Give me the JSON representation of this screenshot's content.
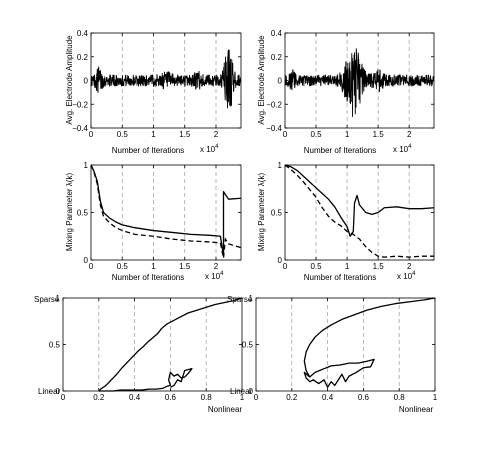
{
  "chart_data": [
    {
      "id": "amp-left",
      "type": "line",
      "ylabel": "Avg. Electrode Amplitude",
      "xlabel": "Number of Iterations",
      "xexp": "x 10^4",
      "xlim": [
        0,
        2.4
      ],
      "ylim": [
        -0.4,
        0.4
      ],
      "xticks": [
        0,
        0.5,
        1,
        1.5,
        2
      ],
      "yticks": [
        -0.4,
        -0.2,
        0,
        0.2,
        0.4
      ],
      "ytick_labels": [
        "−0.4",
        "−0.2",
        "0",
        "0.2",
        "0.4"
      ],
      "grid_x": [
        0.5,
        1,
        1.5,
        2
      ],
      "noise": {
        "base": 0.05,
        "bursts": [
          {
            "center": 0.13,
            "width": 0.05,
            "amp": 0.08
          },
          {
            "center": 1.2,
            "width": 0.1,
            "amp": 0.03
          },
          {
            "center": 1.7,
            "width": 0.07,
            "amp": 0.04
          },
          {
            "center": 2.2,
            "width": 0.07,
            "amp": 0.28
          }
        ]
      },
      "series": [
        {
          "style": "noise"
        }
      ]
    },
    {
      "id": "amp-right",
      "type": "line",
      "ylabel": "Avg. Electrode Amplitude",
      "xlabel": "Number of Iterations",
      "xexp": "x 10^4",
      "xlim": [
        0,
        2.4
      ],
      "ylim": [
        -0.4,
        0.4
      ],
      "xticks": [
        0,
        0.5,
        1,
        1.5,
        2
      ],
      "yticks": [
        -0.4,
        -0.2,
        0,
        0.2,
        0.4
      ],
      "ytick_labels": [
        "−0.4",
        "−0.2",
        "0",
        "0.2",
        "0.4"
      ],
      "grid_x": [
        0.5,
        1,
        1.5,
        2
      ],
      "noise": {
        "base": 0.05,
        "bursts": [
          {
            "center": 0.12,
            "width": 0.05,
            "amp": 0.05
          },
          {
            "center": 1.1,
            "width": 0.14,
            "amp": 0.26
          },
          {
            "center": 1.5,
            "width": 0.08,
            "amp": 0.05
          }
        ]
      },
      "series": [
        {
          "style": "noise"
        }
      ]
    },
    {
      "id": "mix-left",
      "type": "line",
      "ylabel": "Mixing Parameter λ(k)",
      "xlabel": "Number of Iterations",
      "xexp": "x 10^4",
      "xlim": [
        0,
        2.4
      ],
      "ylim": [
        0,
        1
      ],
      "xticks": [
        0,
        0.5,
        1,
        1.5,
        2
      ],
      "yticks": [
        0,
        0.5,
        1
      ],
      "ytick_labels": [
        "0",
        "0.5",
        "1"
      ],
      "grid_x": [
        0.5,
        1,
        1.5,
        2
      ],
      "series": [
        {
          "style": "solid",
          "x": [
            0,
            0.05,
            0.1,
            0.15,
            0.2,
            0.3,
            0.4,
            0.5,
            0.7,
            1.0,
            1.3,
            1.6,
            1.9,
            2.07,
            2.12,
            2.12,
            2.2,
            2.4
          ],
          "y": [
            1,
            0.93,
            0.83,
            0.62,
            0.5,
            0.44,
            0.4,
            0.37,
            0.34,
            0.31,
            0.29,
            0.27,
            0.26,
            0.25,
            0.05,
            0.72,
            0.64,
            0.65
          ]
        },
        {
          "style": "dashed",
          "x": [
            0,
            0.05,
            0.1,
            0.15,
            0.2,
            0.3,
            0.4,
            0.5,
            0.7,
            1.0,
            1.3,
            1.6,
            1.9,
            2.07,
            2.12,
            2.15,
            2.2,
            2.4
          ],
          "y": [
            1,
            0.92,
            0.8,
            0.58,
            0.46,
            0.39,
            0.34,
            0.31,
            0.27,
            0.25,
            0.22,
            0.2,
            0.19,
            0.18,
            0.02,
            0.22,
            0.17,
            0.13
          ]
        }
      ]
    },
    {
      "id": "mix-right",
      "type": "line",
      "ylabel": "Mixing Parameter λ(k)",
      "xlabel": "Number of Iterations",
      "xexp": "x 10^4",
      "xlim": [
        0,
        2.4
      ],
      "ylim": [
        0,
        1
      ],
      "xticks": [
        0,
        0.5,
        1,
        1.5,
        2
      ],
      "yticks": [
        0,
        0.5,
        1
      ],
      "ytick_labels": [
        "0",
        "0.5",
        "1"
      ],
      "grid_x": [
        0.5,
        1,
        1.5,
        2
      ],
      "series": [
        {
          "style": "solid",
          "x": [
            0,
            0.1,
            0.2,
            0.3,
            0.4,
            0.5,
            0.6,
            0.7,
            0.8,
            0.9,
            1.0,
            1.05,
            1.1,
            1.12,
            1.16,
            1.2,
            1.3,
            1.4,
            1.5,
            1.6,
            1.8,
            2.0,
            2.2,
            2.4
          ],
          "y": [
            1,
            0.98,
            0.94,
            0.88,
            0.82,
            0.76,
            0.7,
            0.64,
            0.56,
            0.45,
            0.35,
            0.25,
            0.3,
            0.6,
            0.68,
            0.58,
            0.5,
            0.48,
            0.5,
            0.55,
            0.56,
            0.54,
            0.54,
            0.55
          ]
        },
        {
          "style": "dashed",
          "x": [
            0,
            0.1,
            0.2,
            0.3,
            0.4,
            0.5,
            0.6,
            0.7,
            0.8,
            0.9,
            1.0,
            1.1,
            1.2,
            1.3,
            1.4,
            1.5,
            1.6,
            1.8,
            2.0,
            2.2,
            2.4
          ],
          "y": [
            1,
            0.95,
            0.89,
            0.82,
            0.74,
            0.66,
            0.55,
            0.46,
            0.4,
            0.36,
            0.3,
            0.27,
            0.22,
            0.14,
            0.08,
            0.04,
            0.03,
            0.04,
            0.03,
            0.04,
            0.04
          ]
        }
      ]
    },
    {
      "id": "traj-left",
      "type": "line",
      "xlabel": "Nonlinear",
      "ylabel_top": "Sparse",
      "ylabel_bottom": "Linear",
      "xlim": [
        0,
        1
      ],
      "ylim": [
        0,
        1
      ],
      "xticks": [
        0,
        0.2,
        0.4,
        0.6,
        0.8,
        1
      ],
      "yticks": [
        0,
        0.5,
        1
      ],
      "ytick_labels": [
        "0",
        "0.5",
        "1"
      ],
      "grid_x": [
        0.2,
        0.4,
        0.6,
        0.8
      ],
      "series": [
        {
          "style": "solid",
          "x": [
            0.2,
            0.21,
            0.24,
            0.27,
            0.3,
            0.33,
            0.36,
            0.39,
            0.42,
            0.45,
            0.47,
            0.5,
            0.53,
            0.55,
            0.58,
            0.62,
            0.66,
            0.7,
            0.75,
            0.8,
            0.85,
            0.9,
            0.95,
            1.0
          ],
          "y": [
            0.0,
            0.02,
            0.06,
            0.12,
            0.18,
            0.25,
            0.31,
            0.37,
            0.43,
            0.48,
            0.52,
            0.57,
            0.62,
            0.67,
            0.72,
            0.76,
            0.8,
            0.84,
            0.87,
            0.9,
            0.93,
            0.95,
            0.97,
            1.0
          ]
        },
        {
          "style": "solid",
          "x": [
            0.2,
            0.24,
            0.28,
            0.32,
            0.36,
            0.4,
            0.44,
            0.48,
            0.52,
            0.56,
            0.58,
            0.6,
            0.59,
            0.6,
            0.62,
            0.64,
            0.66,
            0.68,
            0.7,
            0.72,
            0.68,
            0.66,
            0.64,
            0.62,
            0.6
          ],
          "y": [
            0.0,
            0.0,
            0.0,
            0.01,
            0.01,
            0.01,
            0.01,
            0.02,
            0.02,
            0.03,
            0.05,
            0.06,
            0.12,
            0.2,
            0.16,
            0.18,
            0.14,
            0.15,
            0.19,
            0.24,
            0.22,
            0.1,
            0.12,
            0.06,
            0.04
          ]
        }
      ]
    },
    {
      "id": "traj-right",
      "type": "line",
      "xlabel": "Nonlinear",
      "ylabel_top": "Sparse",
      "ylabel_bottom": "Linear",
      "xlim": [
        0,
        1
      ],
      "ylim": [
        0,
        1
      ],
      "xticks": [
        0,
        0.2,
        0.4,
        0.6,
        0.8,
        1
      ],
      "yticks": [
        0,
        0.5,
        1
      ],
      "ytick_labels": [
        "0",
        "0.5",
        "1"
      ],
      "grid_x": [
        0.2,
        0.4,
        0.6,
        0.8
      ],
      "series": [
        {
          "style": "solid",
          "x": [
            0.3,
            0.28,
            0.27,
            0.28,
            0.3,
            0.33,
            0.37,
            0.42,
            0.48,
            0.55,
            0.62,
            0.7,
            0.78,
            0.86,
            0.94,
            1.0
          ],
          "y": [
            0.15,
            0.22,
            0.32,
            0.42,
            0.5,
            0.58,
            0.65,
            0.71,
            0.77,
            0.82,
            0.87,
            0.91,
            0.94,
            0.96,
            0.98,
            1.0
          ]
        },
        {
          "style": "solid",
          "x": [
            0.3,
            0.33,
            0.38,
            0.42,
            0.47,
            0.52,
            0.57,
            0.62,
            0.66,
            0.64,
            0.6,
            0.56,
            0.52,
            0.5,
            0.48,
            0.46,
            0.44,
            0.42,
            0.4,
            0.38,
            0.35,
            0.32,
            0.3,
            0.28,
            0.27,
            0.3
          ],
          "y": [
            0.15,
            0.2,
            0.24,
            0.27,
            0.28,
            0.3,
            0.3,
            0.32,
            0.34,
            0.26,
            0.25,
            0.2,
            0.16,
            0.1,
            0.18,
            0.12,
            0.06,
            0.1,
            0.04,
            0.12,
            0.08,
            0.12,
            0.1,
            0.14,
            0.2,
            0.15
          ]
        }
      ]
    }
  ]
}
